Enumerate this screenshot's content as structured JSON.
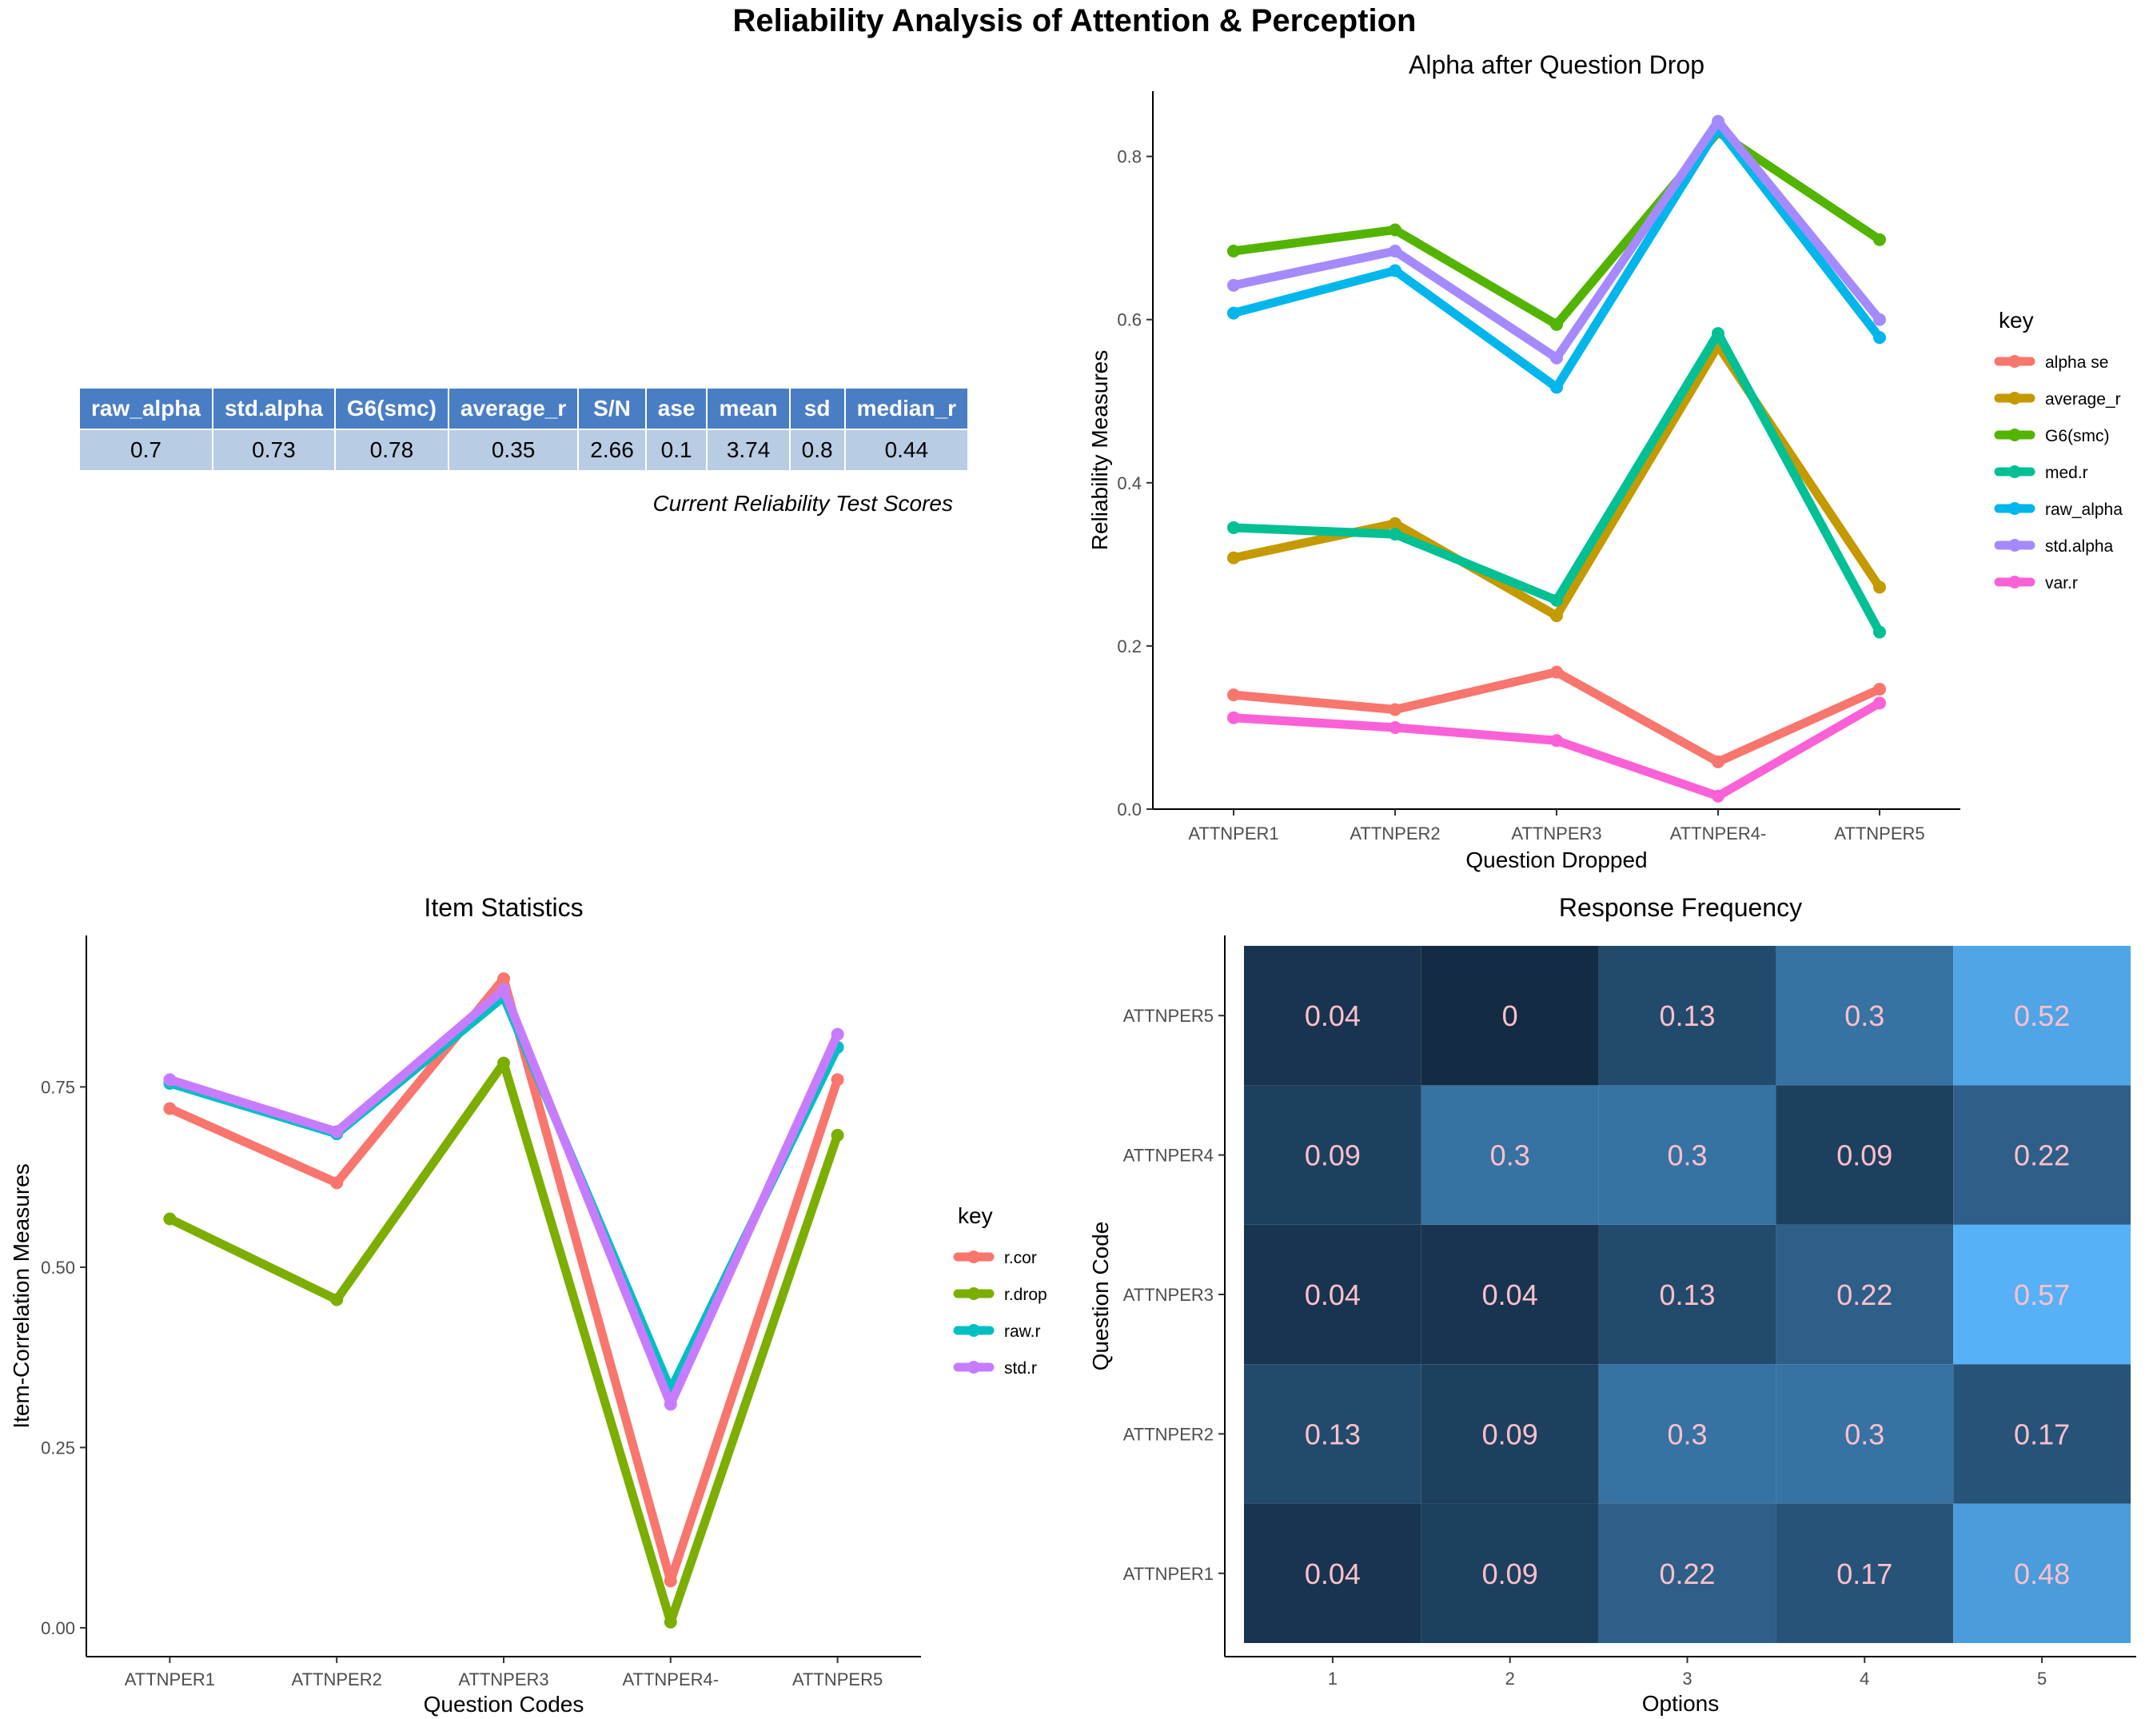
{
  "main_title": "Reliability Analysis of Attention & Perception",
  "table": {
    "headers": [
      "raw_alpha",
      "std.alpha",
      "G6(smc)",
      "average_r",
      "S/N",
      "ase",
      "mean",
      "sd",
      "median_r"
    ],
    "values": [
      "0.7",
      "0.73",
      "0.78",
      "0.35",
      "2.66",
      "0.1",
      "3.74",
      "0.8",
      "0.44"
    ],
    "caption": "Current Reliability Test Scores",
    "header_color": "#4a7ec4",
    "cell_color": "#b8cce4"
  },
  "chart_data": [
    {
      "id": "alpha_drop",
      "type": "line",
      "title": "Alpha after Question Drop",
      "xlabel": "Question Dropped",
      "ylabel": "Reliability Measures",
      "categories": [
        "ATTNPER1",
        "ATTNPER2",
        "ATTNPER3",
        "ATTNPER4-",
        "ATTNPER5"
      ],
      "ylim": [
        0,
        0.88
      ],
      "yticks": [
        0.0,
        0.2,
        0.4,
        0.6,
        0.8
      ],
      "ytick_labels": [
        "0.0",
        "0.2",
        "0.4",
        "0.6",
        "0.8"
      ],
      "legend_title": "key",
      "legend_position": "right",
      "series": [
        {
          "name": "alpha se",
          "color": "#f8766d",
          "values": [
            0.14,
            0.122,
            0.168,
            0.058,
            0.147
          ]
        },
        {
          "name": "average_r",
          "color": "#c49a00",
          "values": [
            0.308,
            0.35,
            0.237,
            0.568,
            0.272
          ]
        },
        {
          "name": "G6(smc)",
          "color": "#53b400",
          "values": [
            0.684,
            0.71,
            0.594,
            0.83,
            0.698
          ]
        },
        {
          "name": "med.r",
          "color": "#00c094",
          "values": [
            0.345,
            0.337,
            0.256,
            0.583,
            0.217
          ]
        },
        {
          "name": "raw_alpha",
          "color": "#00b6eb",
          "values": [
            0.608,
            0.66,
            0.517,
            0.835,
            0.578
          ]
        },
        {
          "name": "std.alpha",
          "color": "#a58aff",
          "values": [
            0.642,
            0.684,
            0.553,
            0.843,
            0.6
          ]
        },
        {
          "name": "var.r",
          "color": "#fb61d7",
          "values": [
            0.112,
            0.1,
            0.084,
            0.016,
            0.13
          ]
        }
      ]
    },
    {
      "id": "item_stats",
      "type": "line",
      "title": "Item Statistics",
      "xlabel": "Question Codes",
      "ylabel": "Item-Correlation Measures",
      "categories": [
        "ATTNPER1",
        "ATTNPER2",
        "ATTNPER3",
        "ATTNPER4-",
        "ATTNPER5"
      ],
      "ylim": [
        -0.04,
        0.96
      ],
      "yticks": [
        0.0,
        0.25,
        0.5,
        0.75
      ],
      "ytick_labels": [
        "0.00",
        "0.25",
        "0.50",
        "0.75"
      ],
      "legend_title": "key",
      "legend_position": "right",
      "series": [
        {
          "name": "r.cor",
          "color": "#f8766d",
          "values": [
            0.72,
            0.617,
            0.9,
            0.065,
            0.76
          ]
        },
        {
          "name": "r.drop",
          "color": "#7cae00",
          "values": [
            0.567,
            0.455,
            0.783,
            0.008,
            0.683
          ]
        },
        {
          "name": "raw.r",
          "color": "#00bfc4",
          "values": [
            0.755,
            0.685,
            0.875,
            0.33,
            0.805
          ]
        },
        {
          "name": "std.r",
          "color": "#c77cff",
          "values": [
            0.76,
            0.688,
            0.885,
            0.31,
            0.823
          ]
        }
      ]
    },
    {
      "id": "response_freq",
      "type": "heatmap",
      "title": "Response Frequency",
      "xlabel": "Options",
      "ylabel": "Question Code",
      "x": [
        "1",
        "2",
        "3",
        "4",
        "5"
      ],
      "y": [
        "ATTNPER1",
        "ATTNPER2",
        "ATTNPER3",
        "ATTNPER4",
        "ATTNPER5"
      ],
      "values": [
        [
          "0.04",
          "0.09",
          "0.22",
          "0.17",
          "0.48"
        ],
        [
          "0.13",
          "0.09",
          "0.3",
          "0.3",
          "0.17"
        ],
        [
          "0.04",
          "0.04",
          "0.13",
          "0.22",
          "0.57"
        ],
        [
          "0.09",
          "0.3",
          "0.3",
          "0.09",
          "0.22"
        ],
        [
          "0.04",
          "0",
          "0.13",
          "0.3",
          "0.52"
        ]
      ],
      "low_color": "#132b43",
      "high_color": "#56b1f7",
      "label_color": "#ffc0cb"
    }
  ]
}
